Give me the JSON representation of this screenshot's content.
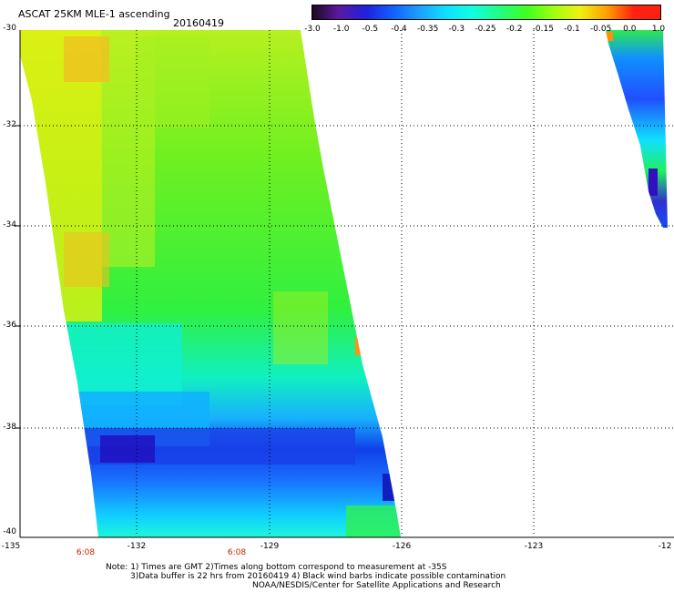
{
  "header": {
    "title": "ASCAT 25KM MLE-1 ascending",
    "date": "20160419"
  },
  "colorbar": {
    "labels": [
      "-3.0",
      "-1.0",
      "-0.5",
      "-0.4",
      "-0.35",
      "-0.3",
      "-0.25",
      "-0.2",
      "-0.15",
      "-0.1",
      "-0.05",
      "0.0",
      "1.0"
    ],
    "colors": [
      "#1a0a1e",
      "#5a1aa0",
      "#2020e0",
      "#1060ff",
      "#1ea0ff",
      "#10e0ff",
      "#10ffe0",
      "#20ff80",
      "#40ff20",
      "#a0ff10",
      "#f0f010",
      "#ffa000",
      "#ff2010"
    ]
  },
  "axes": {
    "lat_labels": [
      "-30",
      "-32",
      "-34",
      "-36",
      "-38",
      "-40"
    ],
    "lon_labels": [
      "-135",
      "-132",
      "-129",
      "-126",
      "-123",
      "-12"
    ],
    "time_labels": [
      "6:08",
      "6:08"
    ]
  },
  "footer": {
    "line1": "Note: 1) Times are GMT 2)Times along bottom correspond to measurement at -35S",
    "line2": "3)Data buffer is 22 hrs from 20160419 4) Black wind barbs indicate possible contamination",
    "line3": "NOAA/NESDIS/Center for Satellite Applications and Research"
  }
}
